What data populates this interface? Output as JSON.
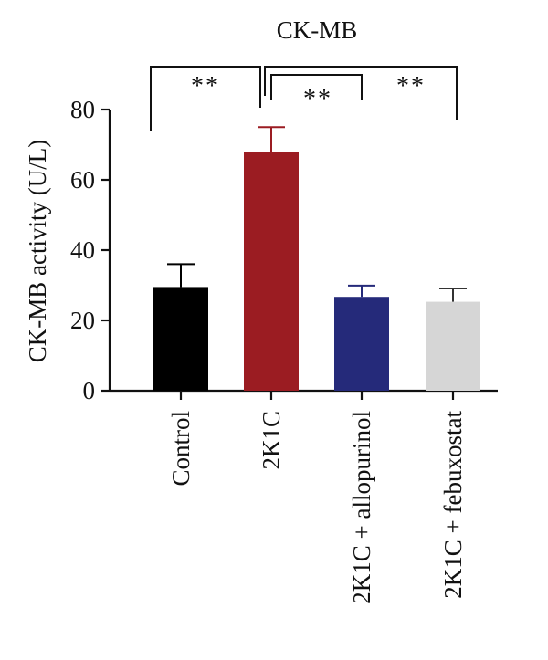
{
  "chart_data": {
    "type": "bar",
    "title": "CK-MB",
    "ylabel": "CK-MB activity (U/L)",
    "xlabel": "",
    "ylim": [
      0,
      80
    ],
    "yticks": [
      0,
      20,
      40,
      60,
      80
    ],
    "grid": false,
    "categories": [
      "Control",
      "2K1C",
      "2K1C + allopurinol",
      "2K1C + febuxostat"
    ],
    "values": [
      29.5,
      68,
      26.7,
      25.3
    ],
    "errors": [
      6.5,
      7,
      3.2,
      3.8
    ],
    "colors": [
      "#000000",
      "#9b1c22",
      "#252a7a",
      "#d6d6d6"
    ],
    "error_colors": [
      "#000000",
      "#9b1c22",
      "#252a7a",
      "#333333"
    ],
    "significance": [
      {
        "from": 0,
        "to": 1,
        "label": "**"
      },
      {
        "from": 1,
        "to": 2,
        "label": "**"
      },
      {
        "from": 1,
        "to": 3,
        "label": "**"
      }
    ]
  }
}
